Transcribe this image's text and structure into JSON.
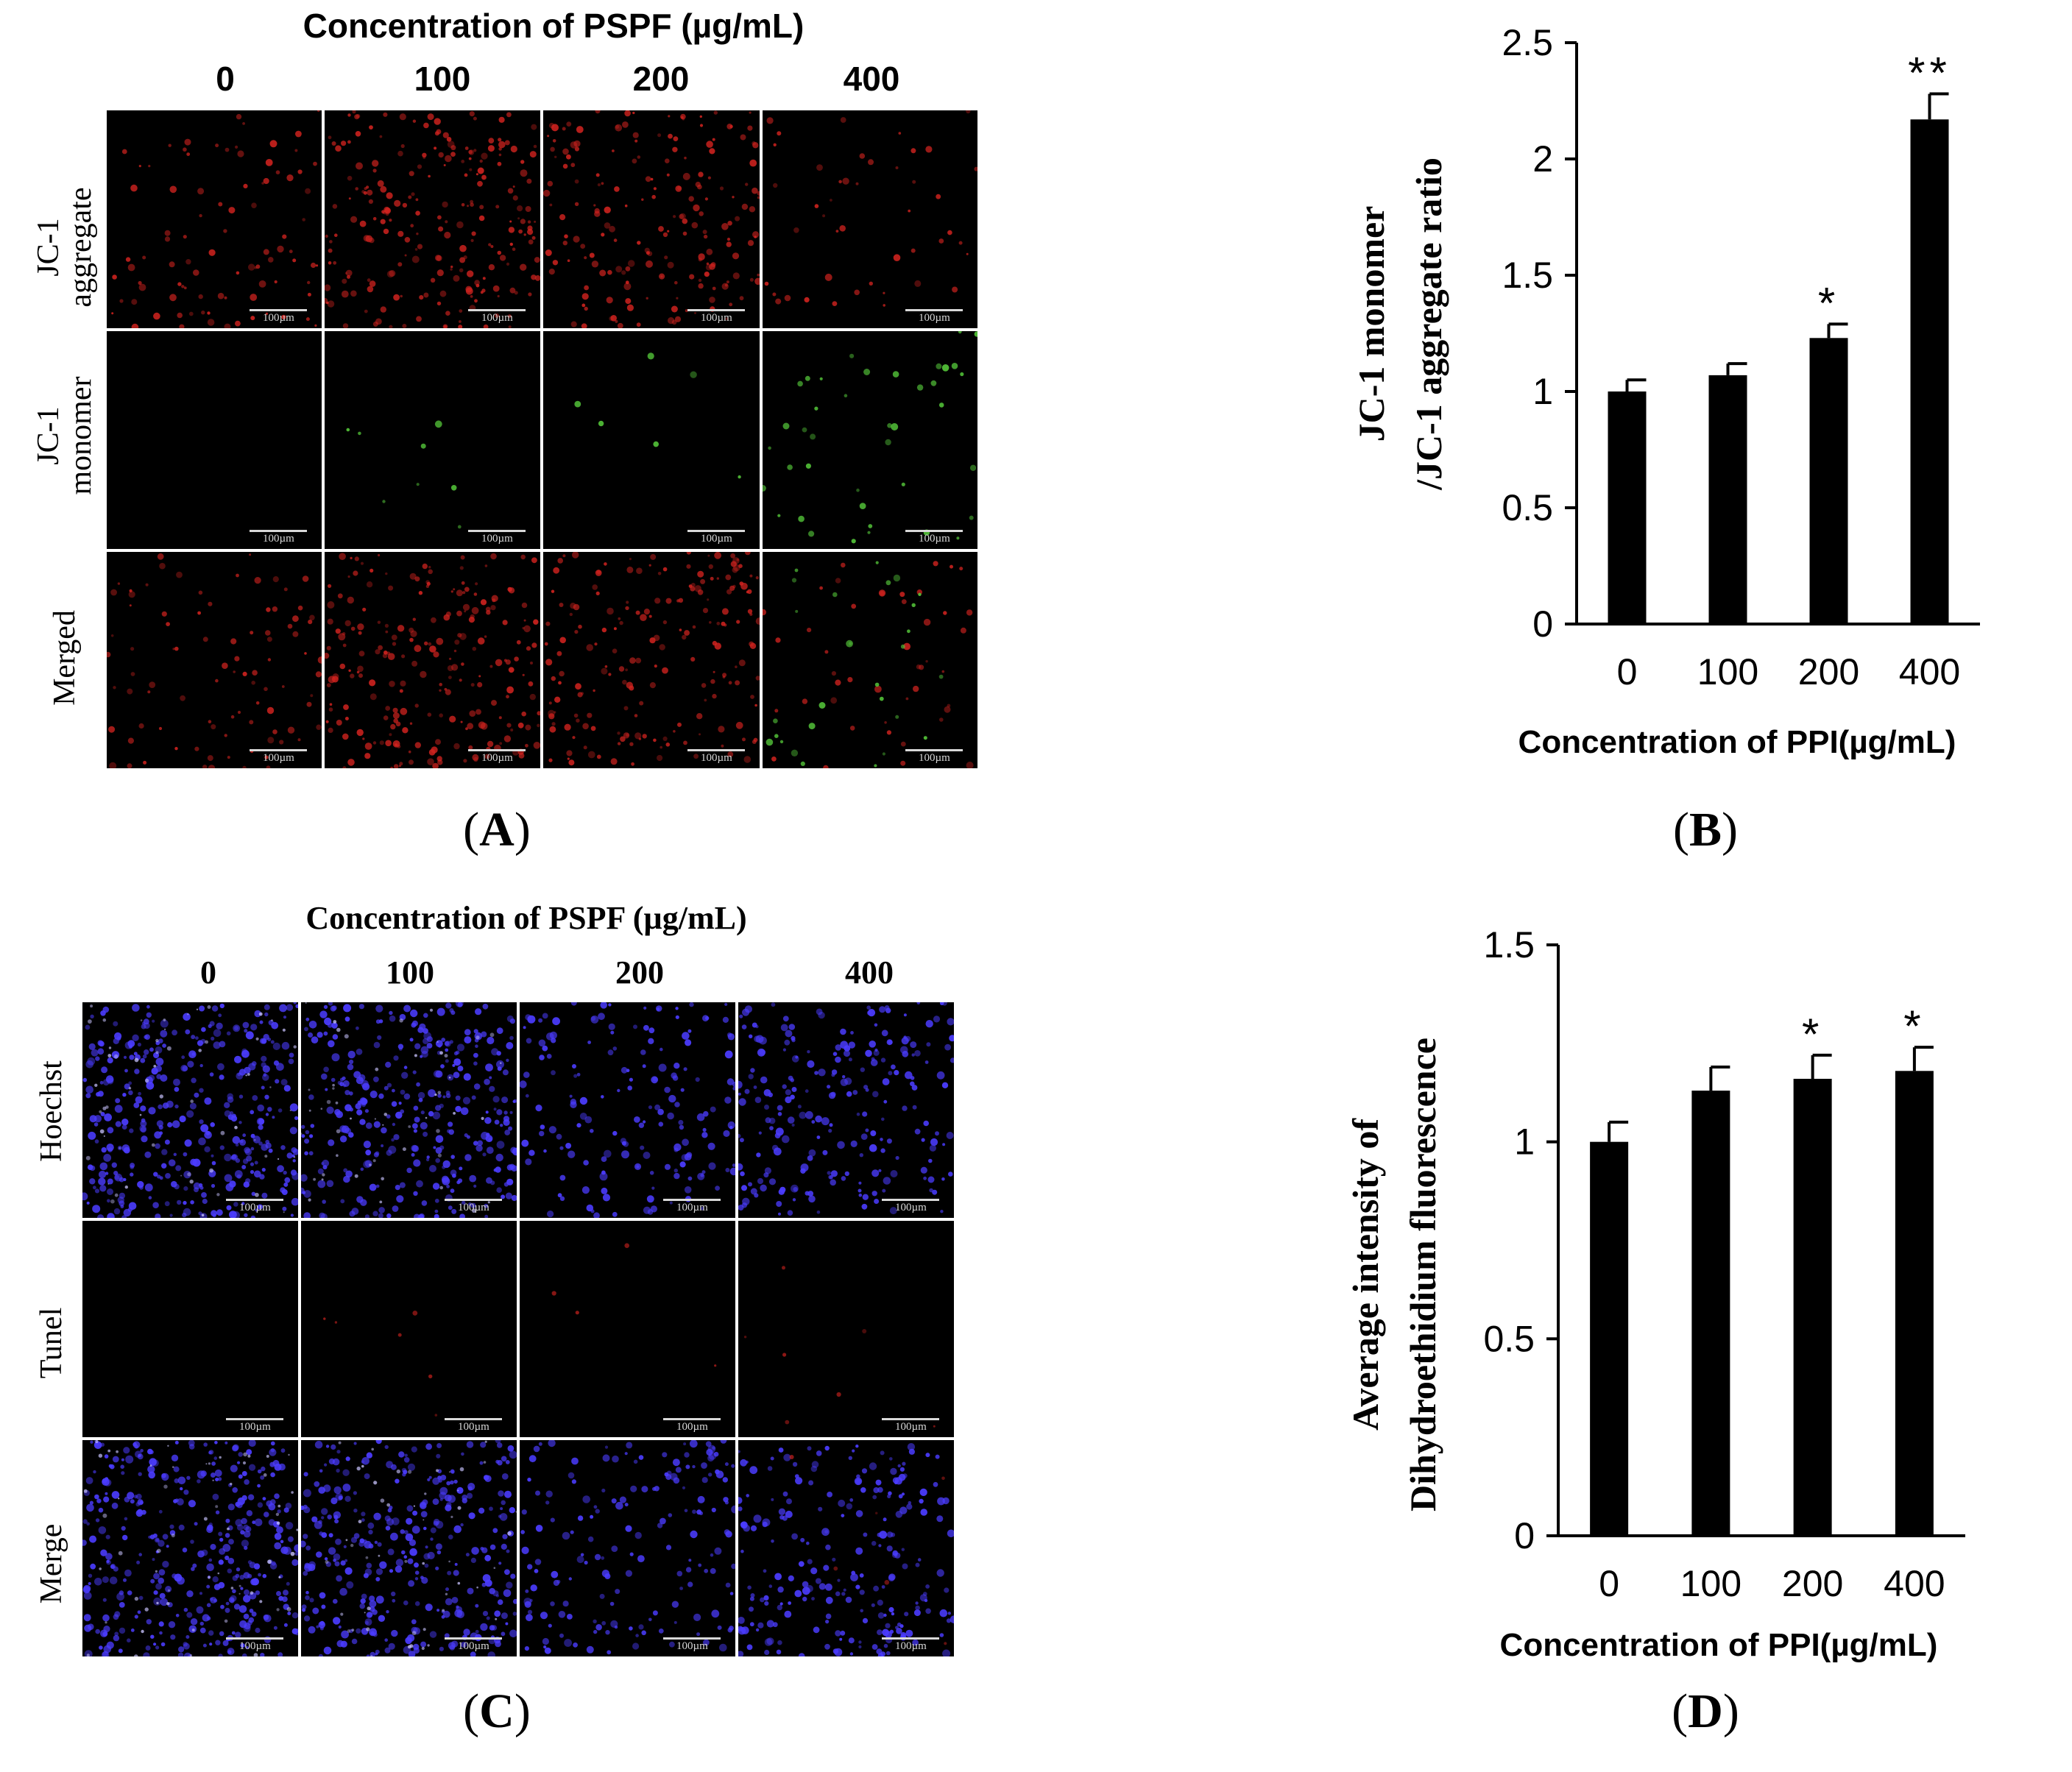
{
  "panel_A": {
    "header": "Concentration of PSPF (µg/mL)",
    "columns": [
      "0",
      "100",
      "200",
      "400"
    ],
    "rows": [
      "JC-1 aggregate",
      "JC-1 monomer",
      "Merged"
    ],
    "row_lines": [
      [
        "JC-1",
        "aggregate"
      ],
      [
        "JC-1",
        "monomer"
      ],
      [
        "Merged"
      ]
    ],
    "scale_bar": "100µm",
    "label": "A"
  },
  "panel_C": {
    "header": "Concentration of PSPF (µg/mL)",
    "columns": [
      "0",
      "100",
      "200",
      "400"
    ],
    "rows": [
      "Hoechst",
      "Tunel",
      "Merge"
    ],
    "scale_bar": "100µm",
    "label": "C"
  },
  "panel_B": {
    "label": "B"
  },
  "panel_D": {
    "label": "D"
  },
  "colors": {
    "bar": "#000000",
    "red_stain": "#d2231f",
    "green_stain": "#55c83a",
    "blue_stain": "#4b3cff"
  },
  "chart_data": [
    {
      "type": "bar",
      "panel": "B",
      "categories": [
        "0",
        "100",
        "200",
        "400"
      ],
      "values": [
        1.0,
        1.07,
        1.23,
        2.17
      ],
      "errors": [
        0.05,
        0.05,
        0.06,
        0.11
      ],
      "significance": [
        "",
        "",
        "*",
        "**"
      ],
      "ylim": [
        0,
        2.5
      ],
      "yticks": [
        "0",
        "0.5",
        "1",
        "1.5",
        "2",
        "2.5"
      ],
      "xlabel": "Concentration of PPI(µg/mL)",
      "ylabel_lines": [
        "JC-1 monomer",
        "/JC-1 aggregate ratio"
      ]
    },
    {
      "type": "bar",
      "panel": "D",
      "categories": [
        "0",
        "100",
        "200",
        "400"
      ],
      "values": [
        1.0,
        1.13,
        1.16,
        1.18
      ],
      "errors": [
        0.05,
        0.06,
        0.06,
        0.06
      ],
      "significance": [
        "",
        "",
        "*",
        "*"
      ],
      "ylim": [
        0,
        1.5
      ],
      "yticks": [
        "0",
        "0.5",
        "1",
        "1.5"
      ],
      "xlabel": "Concentration of PPI(µg/mL)",
      "ylabel_lines": [
        "Average intensity of",
        "Dihydroethidium fluorescence"
      ]
    }
  ]
}
